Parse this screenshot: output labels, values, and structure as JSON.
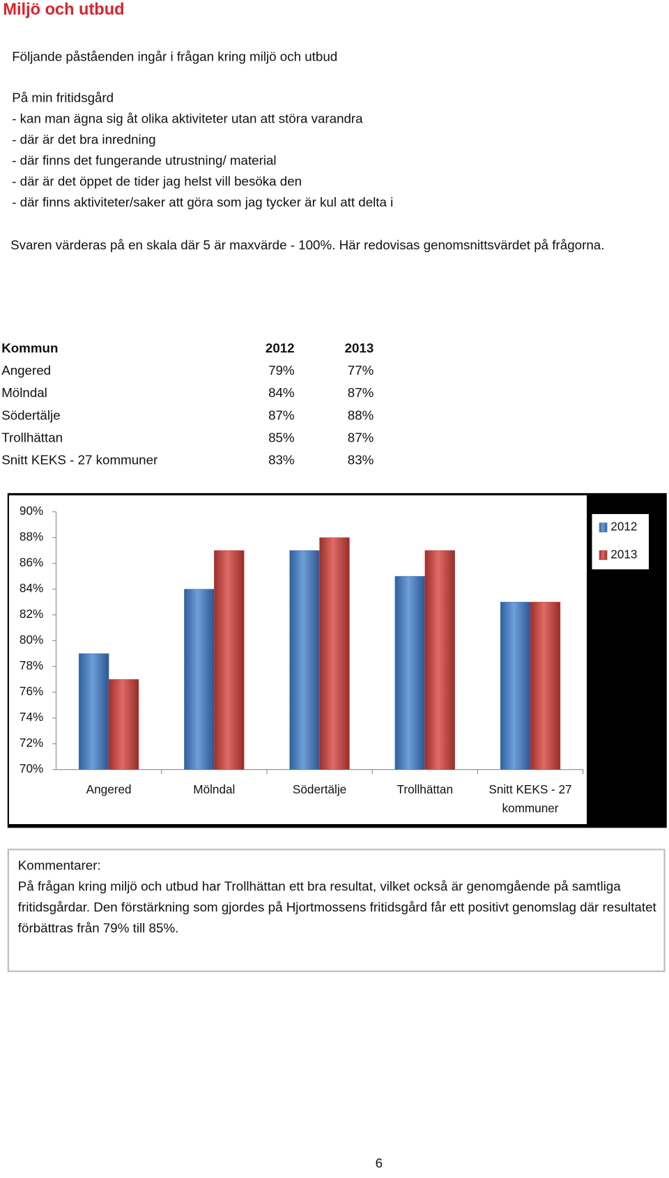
{
  "header": {
    "title": "Miljö och utbud"
  },
  "intro": {
    "lead": "Följande påståenden ingår i frågan kring miljö och utbud",
    "list_title": "På min fritidsgård",
    "items": [
      "- kan man ägna sig åt olika aktiviteter utan att störa varandra",
      "- där är det bra inredning",
      "- där finns det fungerande utrustning/ material",
      "- där är det öppet de tider jag helst vill besöka den",
      "- där finns aktiviteter/saker att göra som jag tycker är kul att delta i"
    ],
    "note": "Svaren värderas på en skala där 5 är maxvärde - 100%. Här redovisas genomsnittsvärdet på frågorna."
  },
  "table": {
    "header": [
      "Kommun",
      "2012",
      "2013"
    ],
    "rows": [
      [
        "Angered",
        "79%",
        "77%"
      ],
      [
        "Mölndal",
        "84%",
        "87%"
      ],
      [
        "Södertälje",
        "87%",
        "88%"
      ],
      [
        "Trollhättan",
        "85%",
        "87%"
      ],
      [
        "Snitt KEKS - 27 kommuner",
        "83%",
        "83%"
      ]
    ]
  },
  "chart_data": {
    "type": "bar",
    "categories": [
      "Angered",
      "Mölndal",
      "Södertälje",
      "Trollhättan",
      "Snitt KEKS - 27 kommuner"
    ],
    "series": [
      {
        "name": "2012",
        "color": "#4f81bd",
        "values": [
          79,
          84,
          87,
          85,
          83
        ]
      },
      {
        "name": "2013",
        "color": "#c0504d",
        "values": [
          77,
          87,
          88,
          87,
          83
        ]
      }
    ],
    "ylim": [
      70,
      90
    ],
    "yticks": [
      {
        "value": 70,
        "label": "70%"
      },
      {
        "value": 72,
        "label": "72%"
      },
      {
        "value": 74,
        "label": "74%"
      },
      {
        "value": 76,
        "label": "76%"
      },
      {
        "value": 78,
        "label": "78%"
      },
      {
        "value": 80,
        "label": "80%"
      },
      {
        "value": 82,
        "label": "82%"
      },
      {
        "value": 84,
        "label": "84%"
      },
      {
        "value": 86,
        "label": "86%"
      },
      {
        "value": 88,
        "label": "88%"
      },
      {
        "value": 90,
        "label": "90%"
      }
    ],
    "legend": "right"
  },
  "comments": {
    "title": "Kommentarer:",
    "text": "På frågan kring miljö och utbud har Trollhättan ett bra resultat, vilket också är genomgående på samtliga fritidsgårdar.  Den förstärkning som gjordes på Hjortmossens fritidsgård får ett positivt genomslag där resultatet förbättras från 79% till 85%."
  },
  "page_number": "6"
}
